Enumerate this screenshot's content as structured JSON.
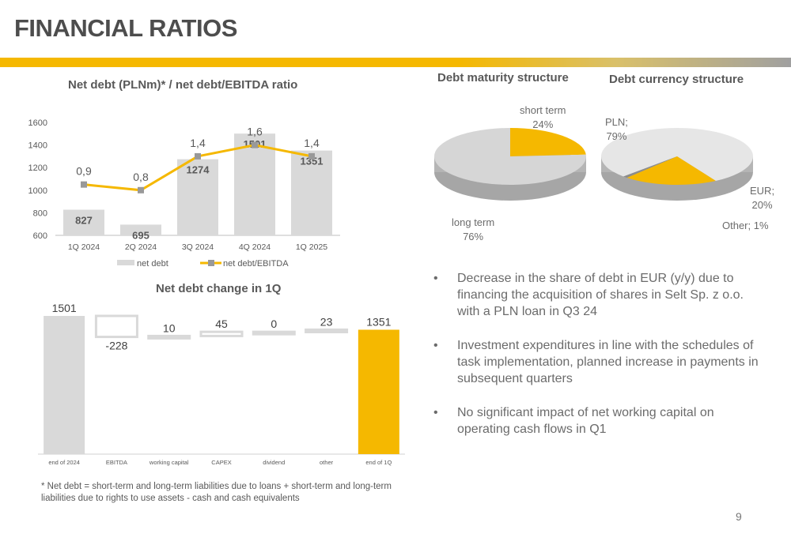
{
  "page": {
    "title": "FINANCIAL RATIOS",
    "page_number": "9",
    "footnote": "* Net debt = short-term and long-term liabilities due to loans + short-term and long-term liabilities due to rights to use assets - cash and cash equivalents"
  },
  "bullets": [
    "Decrease in the share of debt in EUR (y/y) due to financing the acquisition of shares in Selt Sp. z o.o. with a PLN loan in Q3 24",
    "Investment expenditures in line with the schedules of task implementation, planned increase in payments in subsequent quarters",
    "No significant impact of net working capital on operating cash flows in Q1"
  ],
  "bullet_symbol": "•",
  "colors": {
    "accent": "#f5b800",
    "bar_gray": "#d9d9d9",
    "text": "#595959"
  },
  "chart_data": [
    {
      "type": "bar",
      "title": "Net debt (PLNm)* /  net debt/EBITDA ratio",
      "categories": [
        "1Q 2024",
        "2Q 2024",
        "3Q 2024",
        "4Q 2024",
        "1Q 2025"
      ],
      "series": [
        {
          "name": "net debt",
          "kind": "bar",
          "values": [
            827,
            695,
            1274,
            1501,
            1351
          ],
          "labels": [
            "827",
            "695",
            "1274",
            "1501",
            "1351"
          ]
        },
        {
          "name": "net debt/EBITDA",
          "kind": "line",
          "values": [
            0.9,
            0.8,
            1.4,
            1.6,
            1.4
          ],
          "labels": [
            "0,9",
            "0,8",
            "1,4",
            "1,6",
            "1,4"
          ]
        }
      ],
      "ylim": [
        600,
        1600
      ],
      "yticks": [
        600,
        800,
        1000,
        1200,
        1400,
        1600
      ],
      "legend": "bottom",
      "grid": false
    },
    {
      "type": "bar",
      "subtype": "waterfall",
      "title": "Net debt change in 1Q",
      "categories": [
        "end of 2024",
        "EBITDA",
        "working capital",
        "CAPEX",
        "dividend",
        "other",
        "end of 1Q"
      ],
      "values": [
        1501,
        -228,
        10,
        45,
        0,
        23,
        1351
      ],
      "labels": [
        "1501",
        "-228",
        "10",
        "45",
        "0",
        "23",
        "1351"
      ],
      "grid": false
    },
    {
      "type": "pie",
      "title": "Debt maturity structure",
      "slices": [
        {
          "label": "short term",
          "value": 24,
          "text": "24%"
        },
        {
          "label": "long term",
          "value": 76,
          "text": "76%"
        }
      ]
    },
    {
      "type": "pie",
      "title": "Debt currency structure",
      "slices": [
        {
          "label": "PLN;",
          "value": 79,
          "text": "79%"
        },
        {
          "label": "EUR;",
          "value": 20,
          "text": "20%"
        },
        {
          "label": "Other; 1%",
          "value": 1,
          "text": ""
        }
      ]
    }
  ]
}
